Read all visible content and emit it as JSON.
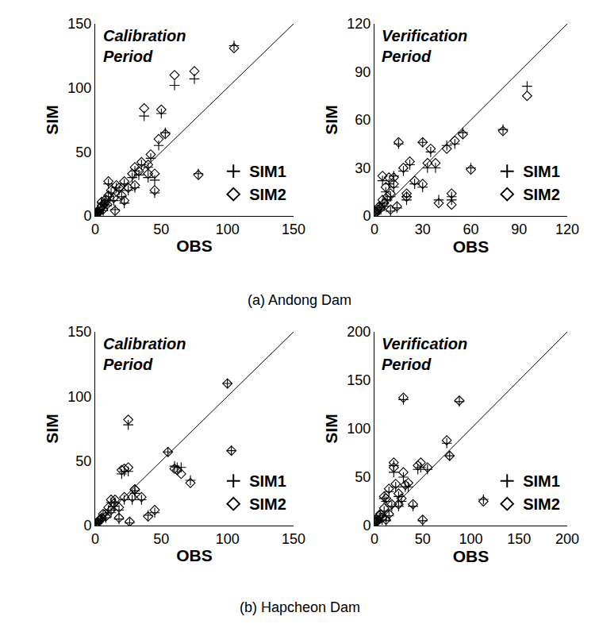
{
  "chart_data": [
    {
      "type": "scatter",
      "title": "Calibration Period",
      "x_label": "OBS",
      "y_label": "SIM",
      "annotations": [
        "(a) Andong Dam"
      ],
      "legend": "lower right",
      "xlim": [
        0,
        150
      ],
      "xticks": [
        0,
        50,
        100,
        150
      ],
      "ylim": [
        0,
        150
      ],
      "yticks": [
        0,
        50,
        100,
        150
      ],
      "x": [
        0.5,
        1,
        1.5,
        2,
        3,
        4,
        5,
        6,
        7,
        8,
        9,
        10,
        12,
        14,
        16,
        18,
        20,
        22,
        25,
        28,
        30,
        33,
        35,
        37,
        40,
        42,
        45,
        48,
        50,
        53,
        60,
        75,
        105,
        5,
        10,
        15,
        22,
        30,
        40,
        45,
        78
      ],
      "series": [
        {
          "name": "SIM1",
          "color": "#000000",
          "marker": "cross",
          "values": [
            0.8,
            1.5,
            2,
            3,
            2.5,
            5,
            7,
            4,
            9,
            12,
            8,
            15,
            18,
            12,
            22,
            20,
            15,
            25,
            20,
            30,
            35,
            32,
            40,
            78,
            38,
            45,
            28,
            55,
            80,
            65,
            102,
            107,
            133,
            10,
            25,
            5,
            10,
            22,
            30,
            18,
            33
          ]
        },
        {
          "name": "SIM2",
          "color": "#000000",
          "marker": "diamond",
          "values": [
            1,
            1.2,
            2.5,
            3.5,
            3,
            6,
            8,
            5,
            10,
            13,
            9,
            16,
            20,
            14,
            24,
            22,
            16,
            27,
            22,
            33,
            38,
            35,
            42,
            84,
            40,
            48,
            33,
            60,
            83,
            64,
            110,
            113,
            131,
            11,
            27,
            4,
            12,
            24,
            33,
            20,
            32
          ]
        }
      ]
    },
    {
      "type": "scatter",
      "title": "Verification Period",
      "x_label": "OBS",
      "y_label": "SIM",
      "legend": "lower right",
      "xlim": [
        0,
        120
      ],
      "xticks": [
        0,
        30,
        60,
        90,
        120
      ],
      "ylim": [
        0,
        120
      ],
      "yticks": [
        0,
        30,
        60,
        90,
        120
      ],
      "x": [
        0.5,
        1,
        2,
        3,
        4,
        5,
        6,
        7,
        8,
        9,
        10,
        12,
        14,
        15,
        18,
        20,
        22,
        25,
        30,
        33,
        35,
        40,
        45,
        48,
        50,
        55,
        60,
        80,
        95,
        10,
        20,
        30,
        48,
        38,
        5,
        12
      ],
      "series": [
        {
          "name": "SIM1",
          "color": "#000000",
          "marker": "cross",
          "values": [
            1,
            2,
            3,
            5,
            4,
            8,
            6,
            15,
            10,
            20,
            12,
            18,
            5,
            45,
            28,
            10,
            32,
            20,
            46,
            30,
            40,
            10,
            44,
            10,
            45,
            52,
            30,
            54,
            81,
            3,
            12,
            18,
            12,
            30,
            22,
            25
          ]
        },
        {
          "name": "SIM2",
          "color": "#000000",
          "marker": "diamond",
          "values": [
            1.5,
            2.5,
            4,
            6,
            5,
            10,
            8,
            18,
            12,
            24,
            14,
            20,
            6,
            46,
            30,
            12,
            34,
            22,
            46,
            33,
            42,
            8,
            42,
            7,
            47,
            51,
            29,
            53,
            75,
            4,
            14,
            20,
            14,
            33,
            25,
            24
          ]
        }
      ]
    },
    {
      "type": "scatter",
      "title": "Calibration Period",
      "x_label": "OBS",
      "y_label": "SIM",
      "annotations": [
        "(b) Hapcheon Dam"
      ],
      "legend": "lower right",
      "xlim": [
        0,
        150
      ],
      "xticks": [
        0,
        50,
        100,
        150
      ],
      "ylim": [
        0,
        150
      ],
      "yticks": [
        0,
        50,
        100,
        150
      ],
      "x": [
        0.5,
        1,
        2,
        3,
        4,
        5,
        6,
        8,
        10,
        12,
        14,
        15,
        18,
        20,
        22,
        25,
        28,
        30,
        35,
        40,
        45,
        55,
        60,
        62,
        65,
        72,
        100,
        103,
        18,
        22,
        26,
        12,
        25,
        30
      ],
      "series": [
        {
          "name": "SIM1",
          "color": "#000000",
          "marker": "cross",
          "values": [
            1,
            1.5,
            2,
            3,
            4,
            5,
            8,
            6,
            12,
            10,
            15,
            18,
            12,
            40,
            20,
            78,
            20,
            25,
            20,
            8,
            10,
            57,
            46,
            45,
            45,
            35,
            110,
            58,
            5,
            42,
            2,
            18,
            42,
            27
          ]
        },
        {
          "name": "SIM2",
          "color": "#000000",
          "marker": "diamond",
          "values": [
            1.2,
            2,
            2.5,
            4,
            5,
            6,
            9,
            7,
            14,
            12,
            17,
            20,
            14,
            43,
            22,
            82,
            22,
            28,
            22,
            7,
            12,
            57,
            44,
            43,
            40,
            33,
            110,
            58,
            6,
            44,
            3,
            20,
            45,
            28
          ]
        }
      ]
    },
    {
      "type": "scatter",
      "title": "Verification Period",
      "x_label": "OBS",
      "y_label": "SIM",
      "legend": "lower right",
      "xlim": [
        0,
        200
      ],
      "xticks": [
        0,
        50,
        100,
        150,
        200
      ],
      "ylim": [
        0,
        200
      ],
      "yticks": [
        0,
        50,
        100,
        150,
        200
      ],
      "x": [
        1,
        2,
        3,
        5,
        6,
        8,
        10,
        12,
        15,
        18,
        20,
        22,
        25,
        28,
        30,
        32,
        35,
        40,
        45,
        48,
        50,
        55,
        75,
        78,
        88,
        113,
        20,
        25,
        15,
        10,
        30,
        12
      ],
      "series": [
        {
          "name": "SIM1",
          "color": "#000000",
          "marker": "cross",
          "values": [
            2,
            3,
            5,
            8,
            10,
            6,
            15,
            25,
            10,
            20,
            55,
            40,
            30,
            25,
            130,
            40,
            40,
            20,
            58,
            60,
            5,
            58,
            85,
            72,
            128,
            27,
            62,
            20,
            35,
            28,
            50,
            5
          ]
        },
        {
          "name": "SIM2",
          "color": "#000000",
          "marker": "diamond",
          "values": [
            2.5,
            4,
            6,
            10,
            12,
            8,
            18,
            28,
            12,
            22,
            60,
            43,
            33,
            28,
            132,
            42,
            44,
            22,
            62,
            65,
            6,
            60,
            88,
            72,
            129,
            25,
            65,
            22,
            38,
            30,
            55,
            6
          ]
        }
      ]
    }
  ]
}
